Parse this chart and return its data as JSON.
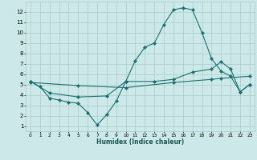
{
  "xlabel": "Humidex (Indice chaleur)",
  "bg_color": "#cce8e8",
  "grid_color": "#aacccc",
  "line_color": "#1a7070",
  "xlim": [
    -0.5,
    23.5
  ],
  "ylim": [
    0.5,
    13.0
  ],
  "xticks": [
    0,
    1,
    2,
    3,
    4,
    5,
    6,
    7,
    8,
    9,
    10,
    11,
    12,
    13,
    14,
    15,
    16,
    17,
    18,
    19,
    20,
    21,
    22,
    23
  ],
  "yticks": [
    1,
    2,
    3,
    4,
    5,
    6,
    7,
    8,
    9,
    10,
    11,
    12
  ],
  "line1_x": [
    0,
    1,
    2,
    3,
    4,
    5,
    6,
    7,
    8,
    9,
    10,
    11,
    12,
    13,
    14,
    15,
    16,
    17,
    18,
    19,
    20,
    21,
    22,
    23
  ],
  "line1_y": [
    5.3,
    4.8,
    3.7,
    3.5,
    3.3,
    3.2,
    2.3,
    1.1,
    2.1,
    3.4,
    5.3,
    7.3,
    8.6,
    9.0,
    10.8,
    12.2,
    12.4,
    12.2,
    10.0,
    7.5,
    6.3,
    5.8,
    4.3,
    5.0
  ],
  "line2_x": [
    0,
    2,
    5,
    8,
    10,
    13,
    15,
    17,
    19,
    20,
    21,
    22,
    23
  ],
  "line2_y": [
    5.3,
    4.2,
    3.8,
    3.9,
    5.3,
    5.3,
    5.5,
    6.2,
    6.5,
    7.2,
    6.5,
    4.3,
    5.0
  ],
  "line3_x": [
    0,
    5,
    10,
    15,
    19,
    20,
    23
  ],
  "line3_y": [
    5.2,
    4.9,
    4.7,
    5.2,
    5.5,
    5.6,
    5.8
  ]
}
